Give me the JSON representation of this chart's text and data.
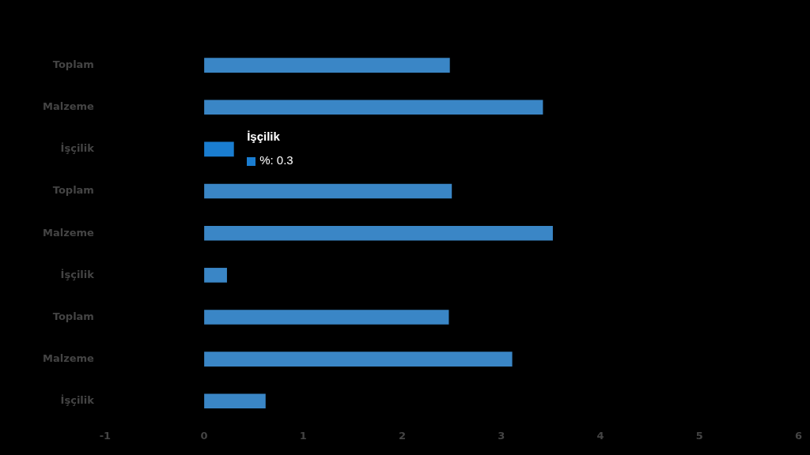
{
  "chart_data": {
    "type": "bar",
    "orientation": "horizontal",
    "categories": [
      "Toplam",
      "Malzeme",
      "İşçilik",
      "Toplam",
      "Malzeme",
      "İşçilik",
      "Toplam",
      "Malzeme",
      "İşçilik"
    ],
    "values": [
      2.48,
      3.42,
      0.3,
      2.5,
      3.52,
      0.23,
      2.47,
      3.11,
      0.62
    ],
    "colors": [
      "#3a86c6",
      "#3a86c6",
      "#1a7dd0",
      "#3a86c6",
      "#3a86c6",
      "#3a86c6",
      "#3a86c6",
      "#3a86c6",
      "#3a86c6"
    ],
    "xlim": [
      -1,
      6
    ],
    "xticks": [
      -1,
      0,
      1,
      2,
      3,
      4,
      5,
      6
    ],
    "grid": false,
    "legend": false,
    "annotations": [
      "İşçilik",
      "%: 0.3"
    ]
  }
}
